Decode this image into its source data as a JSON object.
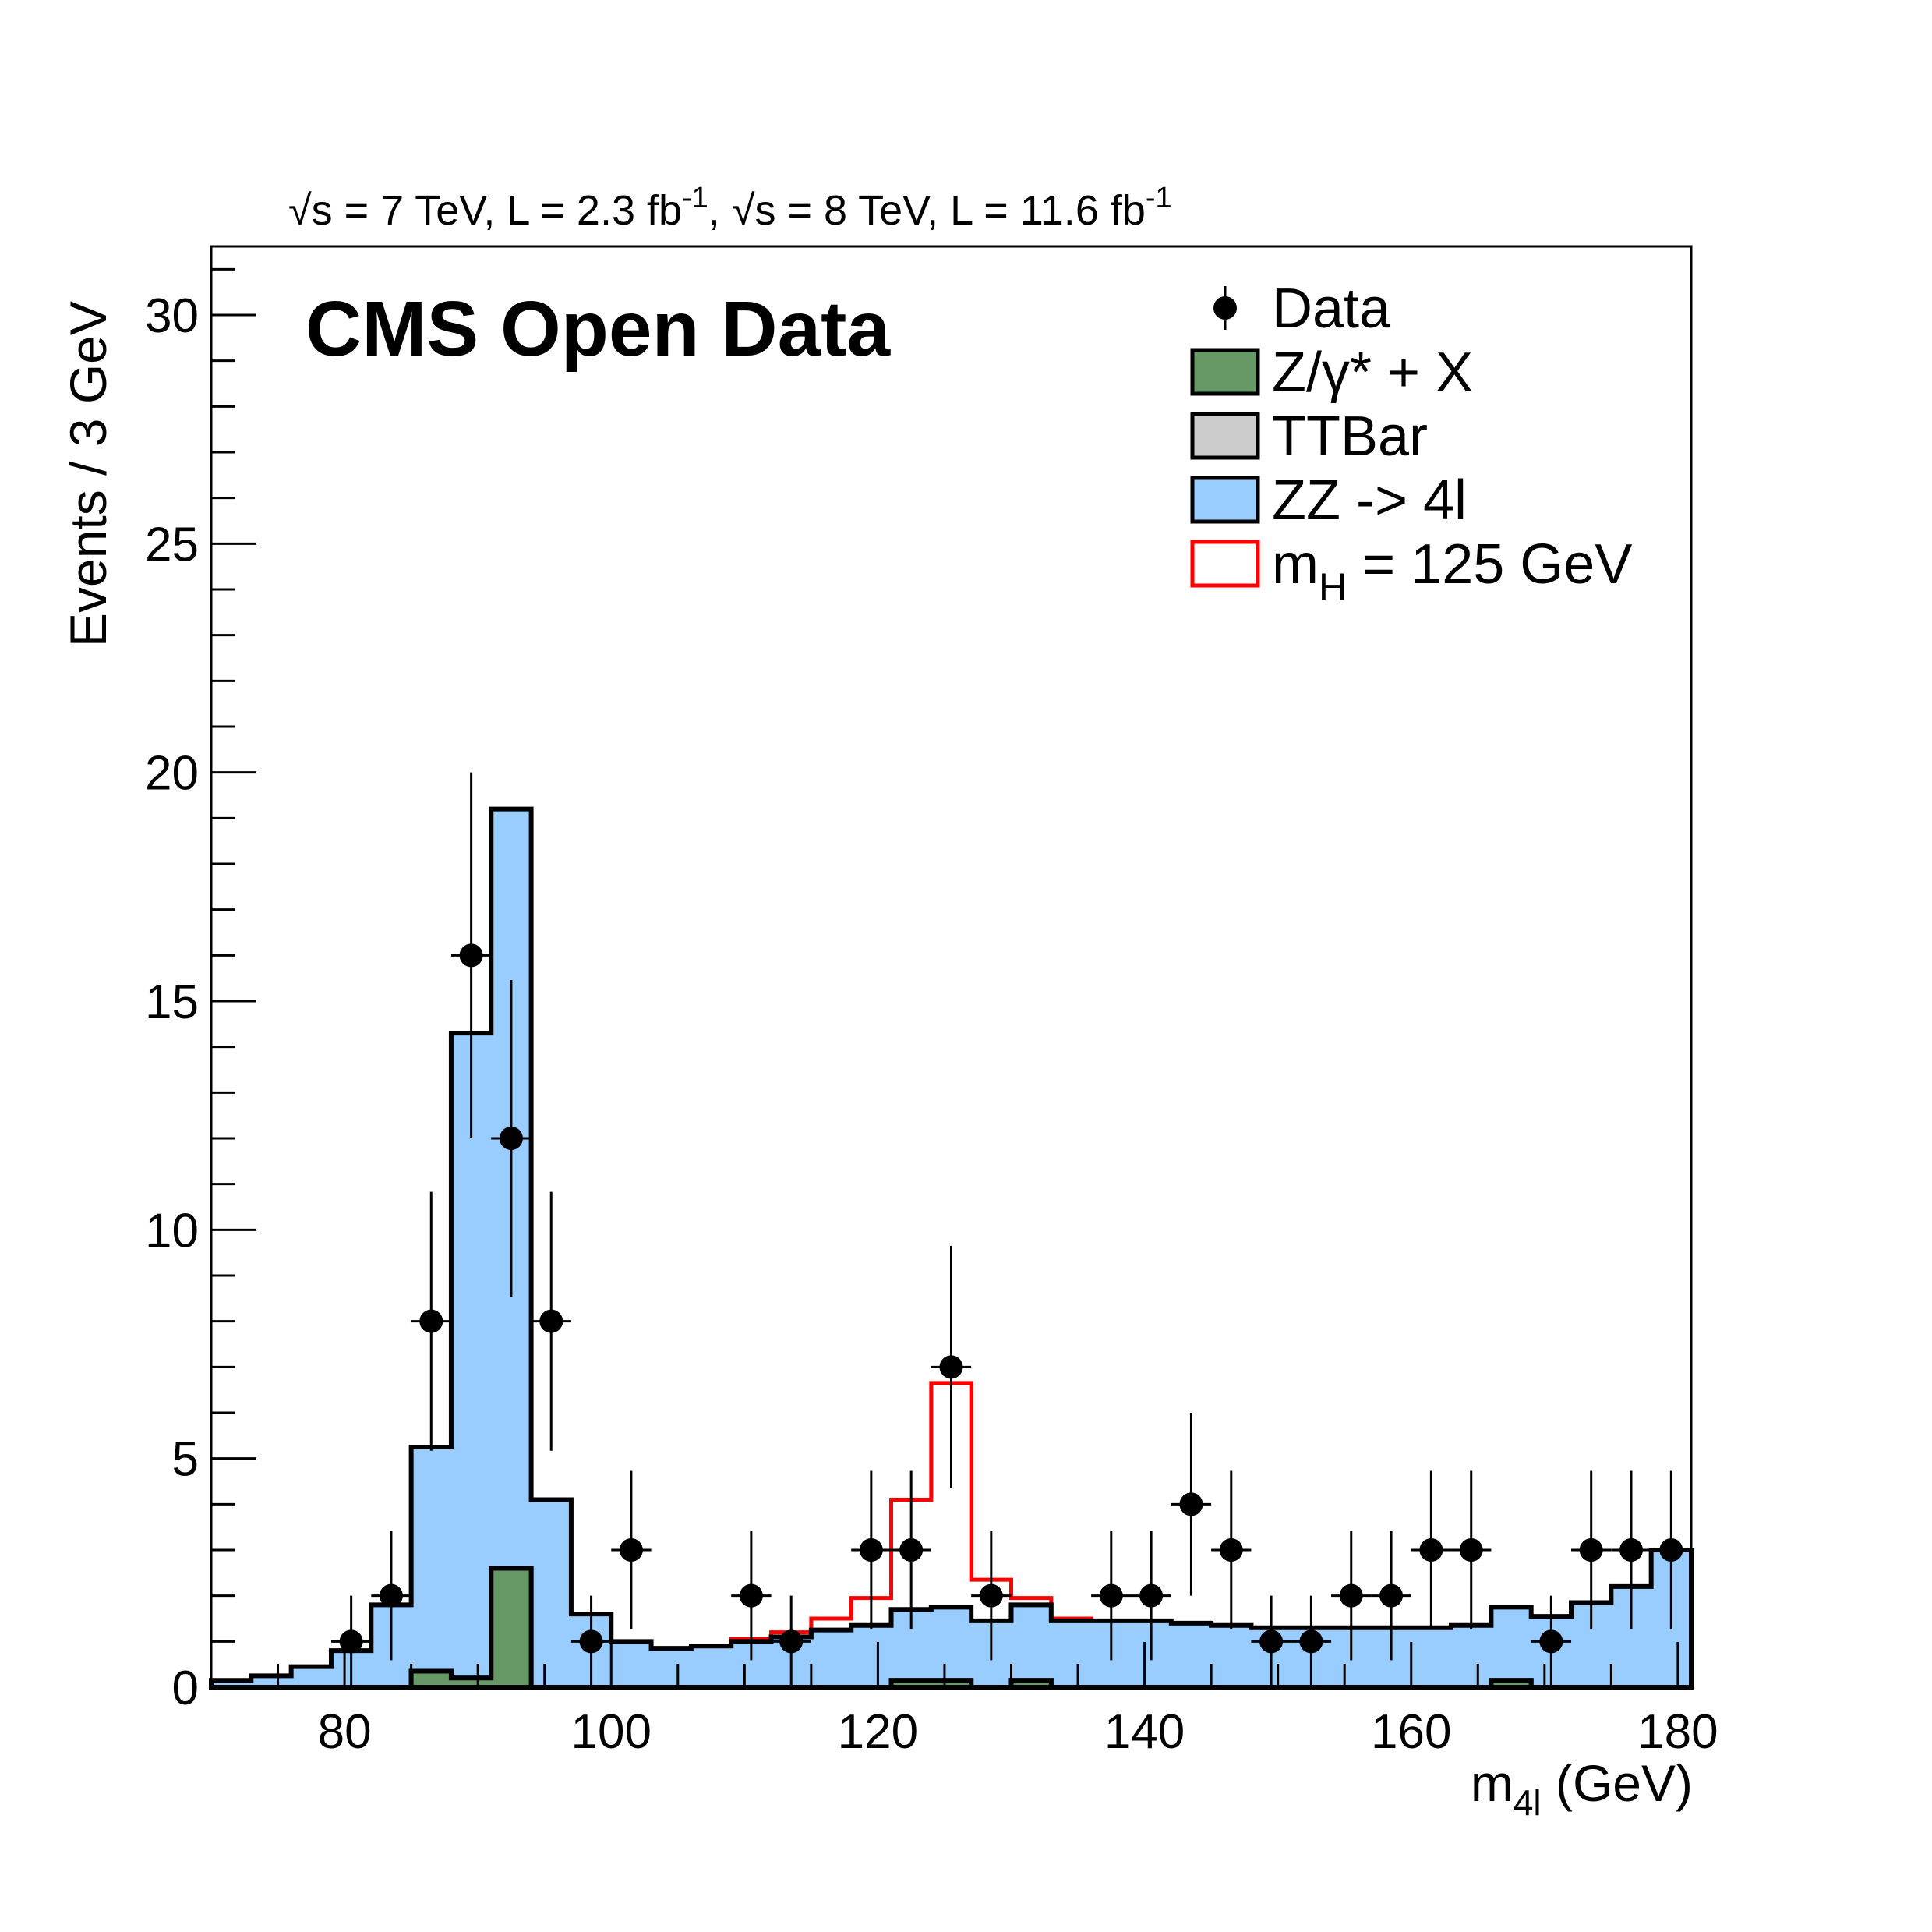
{
  "header": {
    "lumi_7_prefix": "s = 7 TeV, L = 2.3 fb",
    "lumi_sup": "-1",
    "lumi_8_prefix": "s = 8 TeV, L = 11.6 fb",
    "sep": ",",
    "sqrt_glyph": "√"
  },
  "label": "CMS Open Data",
  "axes": {
    "ylabel": "Events / 3 GeV",
    "xlabel_main": "m",
    "xlabel_sub": "4l",
    "xlabel_unit": " (GeV)"
  },
  "colors": {
    "zx": "#669966",
    "ttbar": "#cccccc",
    "zz": "#99ccff",
    "higgs": "#ff0000",
    "data": "#000000"
  },
  "legend": [
    {
      "key": "data",
      "label": "Data",
      "style": "marker"
    },
    {
      "key": "zx",
      "label": "Z/γ* + X",
      "style": "box"
    },
    {
      "key": "ttbar",
      "label": "TTBar",
      "style": "box"
    },
    {
      "key": "zz",
      "label": "ZZ -> 4l",
      "style": "box"
    },
    {
      "key": "higgs",
      "label": "m",
      "label_sub": "H",
      "label_rest": " = 125 GeV",
      "style": "line"
    }
  ],
  "chart_data": {
    "type": "histogram",
    "xlim": [
      70,
      181
    ],
    "ylim": [
      0,
      31.5
    ],
    "x_ticks": [
      80,
      100,
      120,
      140,
      160,
      180
    ],
    "y_ticks": [
      0,
      5,
      10,
      15,
      20,
      25,
      30
    ],
    "bin_width": 3,
    "bin_edges": [
      70,
      73,
      76,
      79,
      82,
      85,
      88,
      91,
      94,
      97,
      100,
      103,
      106,
      109,
      112,
      115,
      118,
      121,
      124,
      127,
      130,
      133,
      136,
      139,
      142,
      145,
      148,
      151,
      154,
      157,
      160,
      163,
      166,
      169,
      172,
      175,
      178,
      181
    ],
    "series": [
      {
        "name": "Z/γ* + X",
        "values": [
          0,
          0,
          0,
          0,
          0,
          0.35,
          0.2,
          2.6,
          0,
          0,
          0,
          0,
          0,
          0,
          0,
          0,
          0,
          0.15,
          0.15,
          0,
          0.15,
          0,
          0,
          0,
          0,
          0,
          0,
          0,
          0,
          0,
          0,
          0,
          0.15,
          0,
          0,
          0,
          0
        ]
      },
      {
        "name": "TTBar",
        "values": [
          0,
          0,
          0,
          0,
          0,
          0,
          0,
          0,
          0,
          0,
          0,
          0,
          0,
          0,
          0,
          0,
          0,
          0,
          0,
          0,
          0,
          0,
          0,
          0,
          0,
          0,
          0,
          0,
          0,
          0,
          0,
          0,
          0,
          0,
          0,
          0,
          0
        ]
      },
      {
        "name": "ZZ -> 4l",
        "values": [
          0.15,
          0.25,
          0.45,
          0.8,
          1.8,
          4.9,
          14.1,
          16.6,
          4.1,
          1.6,
          1.0,
          0.85,
          0.9,
          1.0,
          1.1,
          1.25,
          1.35,
          1.55,
          1.6,
          1.45,
          1.65,
          1.45,
          1.45,
          1.45,
          1.4,
          1.35,
          1.3,
          1.3,
          1.3,
          1.3,
          1.3,
          1.35,
          1.6,
          1.55,
          1.85,
          2.2,
          3.0
        ]
      },
      {
        "name": "m_H = 125 GeV",
        "values": [
          0,
          0,
          0,
          0,
          0,
          0,
          0,
          0,
          0,
          0,
          0,
          0,
          0,
          0.05,
          0.1,
          0.25,
          0.6,
          2.4,
          4.9,
          0.9,
          0.15,
          0.05,
          0,
          0,
          0,
          0,
          0,
          0,
          0,
          0,
          0,
          0,
          0,
          0,
          0,
          0,
          0
        ]
      }
    ],
    "data": {
      "x": [
        80.5,
        83.5,
        86.5,
        89.5,
        92.5,
        95.5,
        98.5,
        101.5,
        110.5,
        113.5,
        119.5,
        122.5,
        125.5,
        128.5,
        137.5,
        140.5,
        143.5,
        146.5,
        149.5,
        152.5,
        155.5,
        158.5,
        161.5,
        164.5,
        170.5,
        173.5,
        176.5,
        179.5
      ],
      "y": [
        1,
        2,
        8,
        16,
        12,
        8,
        1,
        3,
        2,
        1,
        3,
        3,
        7,
        2,
        2,
        2,
        4,
        3,
        1,
        1,
        2,
        2,
        3,
        3,
        1,
        3,
        3,
        3
      ],
      "err_up": [
        1.0,
        1.41,
        2.83,
        4.0,
        3.46,
        2.83,
        1.0,
        1.73,
        1.41,
        1.0,
        1.73,
        1.73,
        2.65,
        1.41,
        1.41,
        1.41,
        2.0,
        1.73,
        1.0,
        1.0,
        1.41,
        1.41,
        1.73,
        1.73,
        1.0,
        1.73,
        1.73,
        1.73
      ],
      "err_down": [
        1.0,
        1.41,
        2.83,
        4.0,
        3.46,
        2.83,
        1.0,
        1.73,
        1.41,
        1.0,
        1.73,
        1.73,
        2.65,
        1.41,
        1.41,
        1.41,
        2.0,
        1.73,
        1.0,
        1.0,
        1.41,
        1.41,
        1.73,
        1.73,
        1.0,
        1.73,
        1.73,
        1.73
      ],
      "x_err": 1.5
    }
  }
}
